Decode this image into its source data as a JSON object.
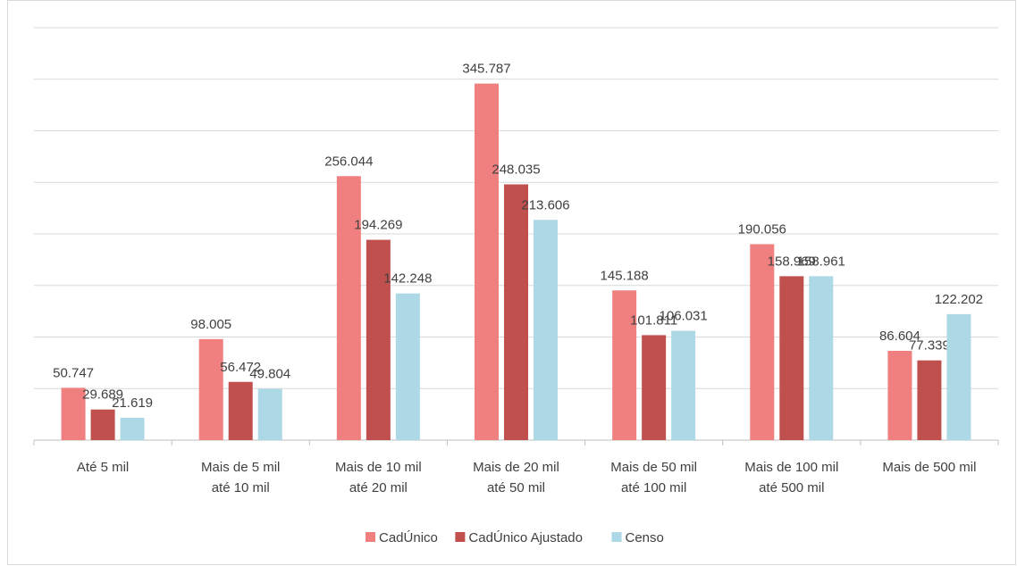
{
  "chart_data": {
    "type": "bar",
    "categories": [
      [
        "Até 5 mil"
      ],
      [
        "Mais de 5 mil",
        "até 10 mil"
      ],
      [
        "Mais de 10 mil",
        "até 20 mil"
      ],
      [
        "Mais de 20 mil",
        "até 50 mil"
      ],
      [
        "Mais de 50 mil",
        "até 100 mil"
      ],
      [
        "Mais de 100 mil",
        "até 500 mil"
      ],
      [
        "Mais de 500 mil"
      ]
    ],
    "series": [
      {
        "name": "CadÚnico",
        "color": "#f08080",
        "values": [
          50747,
          98005,
          256044,
          345787,
          145188,
          190056,
          86604
        ],
        "value_labels": [
          "50.747",
          "98.005",
          "256.044",
          "345.787",
          "145.188",
          "190.056",
          "86.604"
        ]
      },
      {
        "name": "CadÚnico Ajustado",
        "color": "#c0504d",
        "values": [
          29689,
          56472,
          194269,
          248035,
          101811,
          158969,
          77339
        ],
        "value_labels": [
          "29.689",
          "56.472",
          "194.269",
          "248.035",
          "101.811",
          "158.969",
          "77.339"
        ]
      },
      {
        "name": "Censo",
        "color": "#add8e6",
        "values": [
          21619,
          49804,
          142248,
          213606,
          106031,
          158961,
          122202
        ],
        "value_labels": [
          "21.619",
          "49.804",
          "142.248",
          "213.606",
          "106.031",
          "158.961",
          "122.202"
        ]
      }
    ],
    "ylim": [
      0,
      400000
    ],
    "yticks": [
      0,
      50000,
      100000,
      150000,
      200000,
      250000,
      300000,
      350000,
      400000
    ],
    "grid": true,
    "legend": "bottom"
  }
}
